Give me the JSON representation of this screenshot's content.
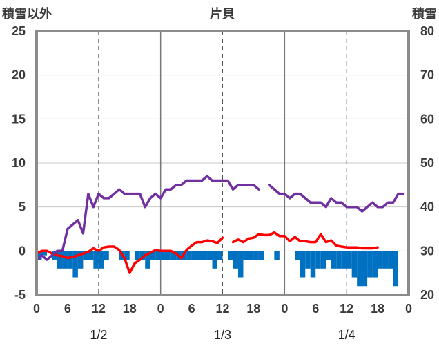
{
  "chart_data": {
    "type": "line",
    "title": "片貝",
    "left_axis_label": "積雪以外",
    "right_axis_label": "積雪",
    "left_ylim": [
      -5,
      25
    ],
    "left_ticks": [
      "25",
      "20",
      "15",
      "10",
      "5",
      "0",
      "-5"
    ],
    "right_ylim": [
      20,
      80
    ],
    "right_ticks": [
      "80",
      "70",
      "60",
      "50",
      "40",
      "30",
      "20"
    ],
    "x_range_hours": [
      0,
      72
    ],
    "x_tick_labels": [
      "0",
      "6",
      "12",
      "18",
      "0",
      "6",
      "12",
      "18",
      "0",
      "6",
      "12",
      "18",
      "0"
    ],
    "day_labels": [
      "1/2",
      "1/3",
      "1/4"
    ],
    "colors": {
      "snow_depth": "#7030a0",
      "temperature": "#ff0000",
      "bars": "#0070c0"
    },
    "series": [
      {
        "type": "line",
        "axis": "right",
        "color": "#7030a0",
        "points": [
          [
            0,
            28
          ],
          [
            1,
            29
          ],
          [
            2,
            28
          ],
          [
            3,
            29
          ],
          [
            4,
            30
          ],
          [
            5,
            30
          ],
          [
            6,
            35
          ],
          [
            7,
            36
          ],
          [
            8,
            37
          ],
          [
            9,
            34
          ],
          [
            10,
            43
          ],
          [
            11,
            40
          ],
          [
            12,
            43
          ],
          [
            13,
            42
          ],
          [
            14,
            42
          ],
          [
            15,
            43
          ],
          [
            16,
            44
          ],
          [
            17,
            43
          ],
          [
            18,
            43
          ],
          [
            19,
            43
          ],
          [
            20,
            43
          ],
          [
            21,
            40
          ],
          [
            22,
            42
          ],
          [
            23,
            43
          ],
          [
            24,
            42
          ],
          [
            25,
            44
          ],
          [
            26,
            44
          ],
          [
            27,
            45
          ],
          [
            28,
            45
          ],
          [
            29,
            46
          ],
          [
            30,
            46
          ],
          [
            31,
            46
          ],
          [
            32,
            46
          ],
          [
            33,
            47
          ],
          [
            34,
            46
          ],
          [
            35,
            46
          ],
          [
            36,
            46
          ],
          [
            37,
            46
          ],
          [
            38,
            44
          ],
          [
            39,
            45
          ],
          [
            40,
            45
          ],
          [
            41,
            45
          ],
          [
            42,
            45
          ],
          [
            43,
            44
          ],
          [
            44,
            null
          ],
          [
            45,
            45
          ],
          [
            46,
            44
          ],
          [
            47,
            43
          ],
          [
            48,
            43
          ],
          [
            49,
            42
          ],
          [
            50,
            43
          ],
          [
            51,
            43
          ],
          [
            52,
            42
          ],
          [
            53,
            41
          ],
          [
            54,
            41
          ],
          [
            55,
            41
          ],
          [
            56,
            40
          ],
          [
            57,
            42
          ],
          [
            58,
            41
          ],
          [
            59,
            41
          ],
          [
            60,
            40
          ],
          [
            61,
            40
          ],
          [
            62,
            40
          ],
          [
            63,
            39
          ],
          [
            64,
            40
          ],
          [
            65,
            41
          ],
          [
            66,
            40
          ],
          [
            67,
            40
          ],
          [
            68,
            41
          ],
          [
            69,
            41
          ],
          [
            70,
            43
          ],
          [
            71,
            43
          ]
        ]
      },
      {
        "type": "line",
        "axis": "left",
        "color": "#ff0000",
        "points": [
          [
            0,
            -0.3
          ],
          [
            1,
            0
          ],
          [
            2,
            0
          ],
          [
            3,
            -0.3
          ],
          [
            4,
            -0.5
          ],
          [
            5,
            -0.6
          ],
          [
            6,
            -0.8
          ],
          [
            7,
            -0.7
          ],
          [
            8,
            -0.5
          ],
          [
            9,
            -0.3
          ],
          [
            10,
            -0.1
          ],
          [
            11,
            0.3
          ],
          [
            12,
            0
          ],
          [
            13,
            0.4
          ],
          [
            14,
            0.5
          ],
          [
            15,
            0.5
          ],
          [
            16,
            0.1
          ],
          [
            17,
            -0.8
          ],
          [
            18,
            -2.5
          ],
          [
            19,
            -1.4
          ],
          [
            20,
            -1
          ],
          [
            21,
            -0.5
          ],
          [
            22,
            -0.2
          ],
          [
            23,
            0.1
          ],
          [
            24,
            0
          ],
          [
            25,
            0
          ],
          [
            26,
            0
          ],
          [
            27,
            -0.3
          ],
          [
            28,
            -0.8
          ],
          [
            29,
            0.1
          ],
          [
            30,
            0.6
          ],
          [
            31,
            1
          ],
          [
            32,
            1
          ],
          [
            33,
            1.2
          ],
          [
            34,
            1.1
          ],
          [
            35,
            0.9
          ],
          [
            36,
            1.5
          ],
          [
            37,
            null
          ],
          [
            38,
            1
          ],
          [
            39,
            1.3
          ],
          [
            40,
            1
          ],
          [
            41,
            1.4
          ],
          [
            42,
            1.5
          ],
          [
            43,
            1.9
          ],
          [
            44,
            1.8
          ],
          [
            45,
            1.8
          ],
          [
            46,
            2.1
          ],
          [
            47,
            1.7
          ],
          [
            48,
            1.7
          ],
          [
            49,
            1.1
          ],
          [
            50,
            1.6
          ],
          [
            51,
            1.1
          ],
          [
            52,
            1.1
          ],
          [
            53,
            1
          ],
          [
            54,
            1
          ],
          [
            55,
            1.9
          ],
          [
            56,
            1
          ],
          [
            57,
            1.2
          ],
          [
            58,
            0.6
          ],
          [
            59,
            0.5
          ],
          [
            60,
            0.4
          ],
          [
            61,
            0.4
          ],
          [
            62,
            0.4
          ],
          [
            63,
            0.3
          ],
          [
            64,
            0.3
          ],
          [
            65,
            0.3
          ],
          [
            66,
            0.4
          ]
        ]
      },
      {
        "type": "bar",
        "axis": "left",
        "color": "#0070c0",
        "points": [
          [
            0,
            -1
          ],
          [
            1,
            -0.5
          ],
          [
            2,
            0
          ],
          [
            3,
            -1
          ],
          [
            4,
            -2
          ],
          [
            5,
            -2
          ],
          [
            6,
            -2
          ],
          [
            7,
            -3
          ],
          [
            8,
            -2
          ],
          [
            9,
            -1
          ],
          [
            10,
            -1
          ],
          [
            11,
            -2
          ],
          [
            12,
            -2
          ],
          [
            13,
            -1
          ],
          [
            14,
            0
          ],
          [
            15,
            0
          ],
          [
            16,
            -1
          ],
          [
            17,
            -1
          ],
          [
            18,
            0
          ],
          [
            19,
            -1
          ],
          [
            20,
            -1
          ],
          [
            21,
            -2
          ],
          [
            22,
            -1
          ],
          [
            23,
            -1
          ],
          [
            24,
            -1
          ],
          [
            25,
            -1
          ],
          [
            26,
            -1
          ],
          [
            27,
            -1
          ],
          [
            28,
            -1
          ],
          [
            29,
            -1
          ],
          [
            30,
            -1
          ],
          [
            31,
            -1
          ],
          [
            32,
            -1
          ],
          [
            33,
            -1
          ],
          [
            34,
            -2
          ],
          [
            35,
            -1
          ],
          [
            36,
            0
          ],
          [
            37,
            -1
          ],
          [
            38,
            -2
          ],
          [
            39,
            -3
          ],
          [
            40,
            -1
          ],
          [
            41,
            -1
          ],
          [
            42,
            -1
          ],
          [
            43,
            -1
          ],
          [
            44,
            0
          ],
          [
            45,
            0
          ],
          [
            46,
            -1
          ],
          [
            47,
            0
          ],
          [
            48,
            0
          ],
          [
            49,
            0
          ],
          [
            50,
            -1
          ],
          [
            51,
            -3
          ],
          [
            52,
            -2
          ],
          [
            53,
            -3
          ],
          [
            54,
            -2
          ],
          [
            55,
            -2
          ],
          [
            56,
            -1
          ],
          [
            57,
            -2
          ],
          [
            58,
            -2
          ],
          [
            59,
            -2
          ],
          [
            60,
            -2
          ],
          [
            61,
            -3
          ],
          [
            62,
            -4
          ],
          [
            63,
            -4
          ],
          [
            64,
            -3
          ],
          [
            65,
            -3
          ],
          [
            66,
            -2
          ],
          [
            67,
            -2
          ],
          [
            68,
            -2
          ],
          [
            69,
            -4
          ]
        ]
      }
    ]
  }
}
